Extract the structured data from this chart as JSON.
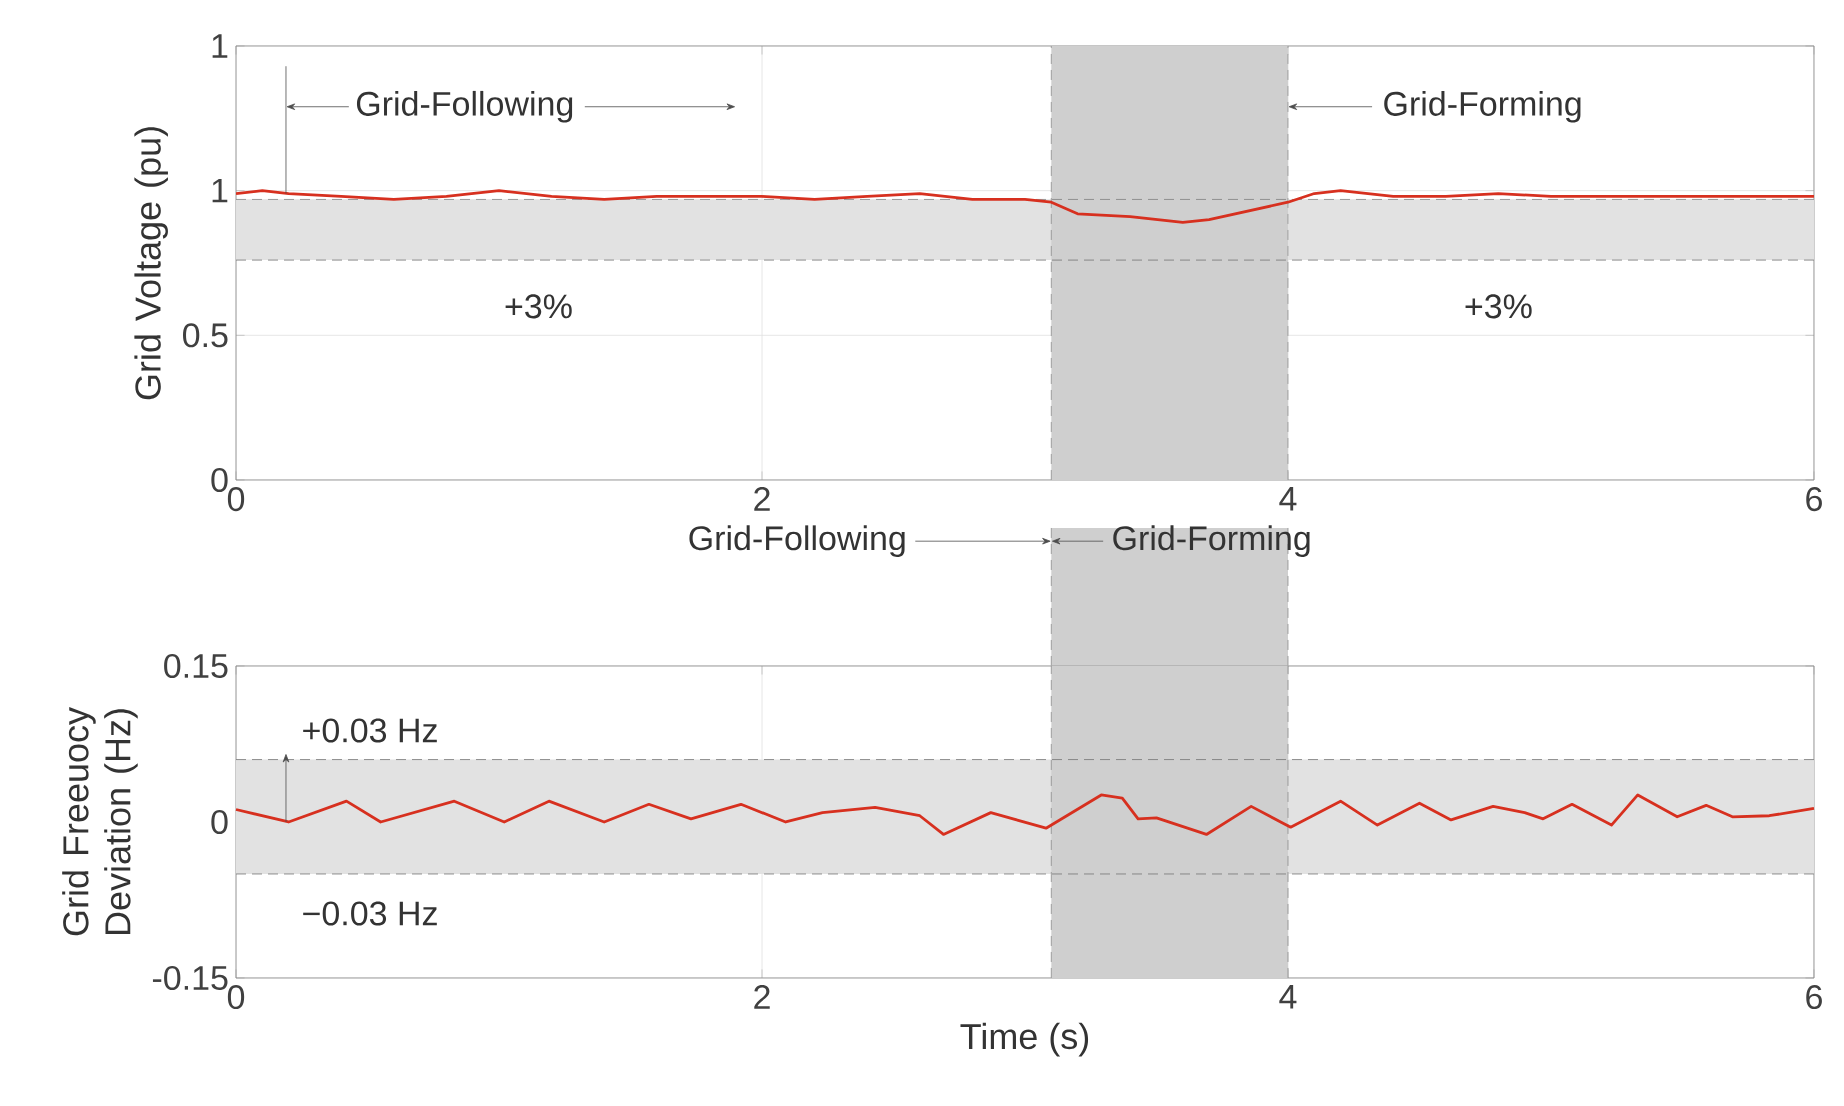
{
  "chart_data": [
    {
      "type": "line",
      "ylabel": "Grid Voltage (pu)",
      "x": [
        0,
        0.1,
        0.2,
        0.4,
        0.6,
        0.8,
        1.0,
        1.2,
        1.4,
        1.6,
        1.8,
        2.0,
        2.2,
        2.4,
        2.6,
        2.8,
        3.0,
        3.1,
        3.2,
        3.4,
        3.6,
        3.7,
        3.8,
        3.9,
        4.0,
        4.1,
        4.2,
        4.4,
        4.6,
        4.8,
        5.0,
        5.2,
        5.4,
        5.6,
        5.8,
        6.0
      ],
      "series": [
        {
          "color": "#d7301f",
          "values": [
            0.99,
            1.0,
            0.99,
            0.98,
            0.97,
            0.98,
            1.0,
            0.98,
            0.97,
            0.98,
            0.98,
            0.98,
            0.97,
            0.98,
            0.99,
            0.97,
            0.97,
            0.96,
            0.92,
            0.91,
            0.89,
            0.9,
            0.92,
            0.94,
            0.96,
            0.99,
            1.0,
            0.98,
            0.98,
            0.99,
            0.98,
            0.98,
            0.98,
            0.98,
            0.98,
            0.98
          ]
        }
      ],
      "xlim": [
        0,
        6
      ],
      "xticks": [
        0,
        2,
        4,
        6
      ],
      "ylim": [
        0,
        1.5
      ],
      "yticks": [
        0,
        0.5,
        1,
        {
          "value": 1.5,
          "label": "1"
        }
      ],
      "grid": true,
      "bands": [
        {
          "axis": "y",
          "from": 0.76,
          "to": 0.97,
          "color": "#e2e2e2"
        },
        {
          "axis": "x",
          "from": 3.1,
          "to": 4,
          "color": "#cfcfcf"
        }
      ],
      "ref_lines": [
        {
          "axis": "y",
          "value": 0.76,
          "line_style": "dashed"
        },
        {
          "axis": "y",
          "value": 0.97,
          "line_style": "dashed"
        },
        {
          "axis": "x",
          "value": 3.1,
          "line_style": "dashed"
        },
        {
          "axis": "x",
          "value": 4,
          "line_style": "dashed"
        }
      ],
      "annotations": [
        "Grid-Following",
        {
          "text": "Grid-Forming",
          "x": 4,
          "y": 1.29
        },
        "+3%",
        "+3%"
      ]
    },
    {
      "type": "line",
      "xlabel": "Time (s)",
      "ylabel": "Grid Freeuocy Deviation (Hz)",
      "x": [
        0,
        0.2,
        0.42,
        0.55,
        0.83,
        1.02,
        1.19,
        1.4,
        1.57,
        1.73,
        1.92,
        2.09,
        2.23,
        2.43,
        2.6,
        2.69,
        2.87,
        3.08,
        3.29,
        3.37,
        3.43,
        3.5,
        3.69,
        3.86,
        4.01,
        4.2,
        4.34,
        4.5,
        4.62,
        4.78,
        4.9,
        4.97,
        5.08,
        5.23,
        5.33,
        5.48,
        5.59,
        5.69,
        5.83,
        6.0
      ],
      "series": [
        {
          "color": "#d7301f",
          "values": [
            0.012,
            0.0,
            0.02,
            0.0,
            0.02,
            0.0,
            0.02,
            0.0,
            0.017,
            0.003,
            0.017,
            0.0,
            0.009,
            0.014,
            0.006,
            -0.012,
            0.009,
            -0.006,
            0.026,
            0.023,
            0.003,
            0.004,
            -0.012,
            0.015,
            -0.005,
            0.02,
            -0.003,
            0.018,
            0.002,
            0.015,
            0.009,
            0.003,
            0.017,
            -0.003,
            0.026,
            0.005,
            0.016,
            0.005,
            0.006,
            0.013
          ]
        }
      ],
      "xlim": [
        0,
        6
      ],
      "xticks": [
        0,
        2,
        4,
        6
      ],
      "ylim": [
        -0.15,
        0.15
      ],
      "yticks": [
        -0.15,
        0,
        0.15
      ],
      "grid": true,
      "bands": [
        {
          "axis": "y",
          "from": -0.05,
          "to": 0.06,
          "color": "#e2e2e2"
        },
        {
          "axis": "x",
          "from": 3.1,
          "to": 4,
          "color": "#cfcfcf"
        }
      ],
      "ref_lines": [
        {
          "axis": "y",
          "value": -0.05,
          "line_style": "dashed"
        },
        {
          "axis": "y",
          "value": 0.06,
          "line_style": "dashed"
        },
        {
          "axis": "x",
          "value": 3.1,
          "line_style": "dashed"
        },
        {
          "axis": "x",
          "value": 4,
          "line_style": "dashed"
        }
      ],
      "annotations": [
        "+0.03 Hz",
        "−0.03 Hz",
        "Grid-Following",
        "Grid-Forming"
      ]
    }
  ]
}
